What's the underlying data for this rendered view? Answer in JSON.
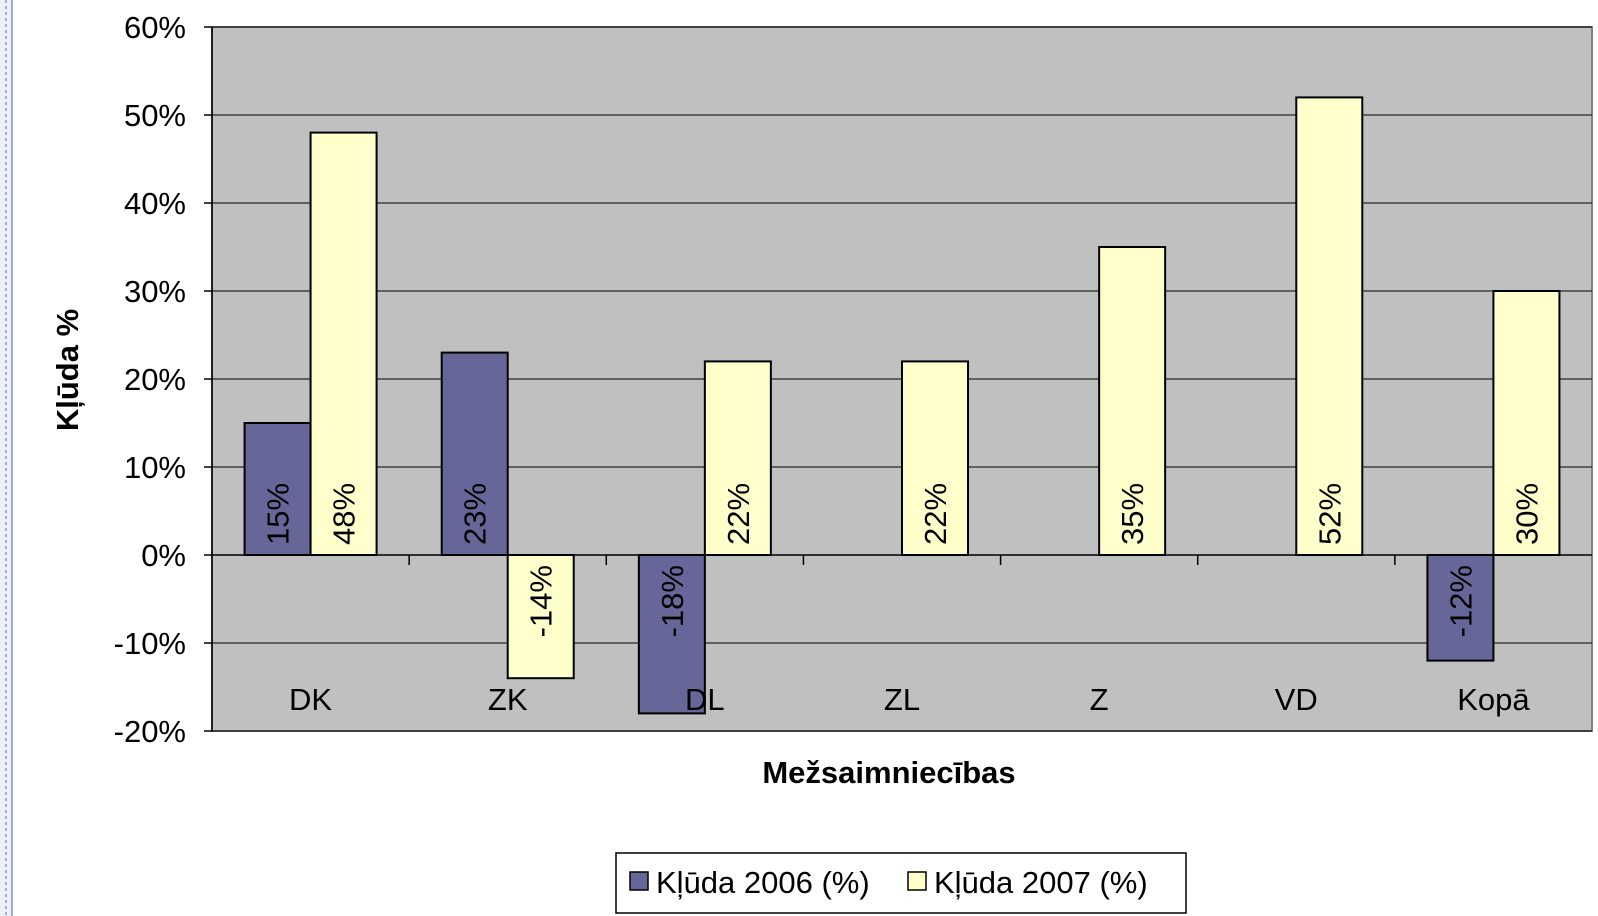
{
  "chart_data": {
    "type": "bar",
    "categories": [
      "DK",
      "ZK",
      "DL",
      "ZL",
      "Z",
      "VD",
      "Kopā"
    ],
    "series": [
      {
        "name": "Kļūda 2006 (%)",
        "values": [
          15,
          23,
          -18,
          null,
          null,
          null,
          -12
        ],
        "labels": [
          "15%",
          "23%",
          "-18%",
          "",
          "",
          "",
          "-12%"
        ],
        "color": "#666699"
      },
      {
        "name": "Kļūda 2007 (%)",
        "values": [
          48,
          -14,
          22,
          22,
          35,
          52,
          30
        ],
        "labels": [
          "48%",
          "-14%",
          "22%",
          "22%",
          "35%",
          "52%",
          "30%"
        ],
        "color": "#FFFFCC"
      }
    ],
    "title": "",
    "xlabel": "Mežsaimniecības",
    "ylabel": "Kļūda %",
    "ylim": [
      -20,
      60
    ],
    "yticks": [
      60,
      50,
      40,
      30,
      20,
      10,
      0,
      -10,
      -20
    ],
    "ytick_labels": [
      "60%",
      "50%",
      "40%",
      "30%",
      "20%",
      "10%",
      "0%",
      "-10%",
      "-20%"
    ],
    "grid": true,
    "plot_background": "#C0C0C0",
    "legend_position": "bottom"
  }
}
